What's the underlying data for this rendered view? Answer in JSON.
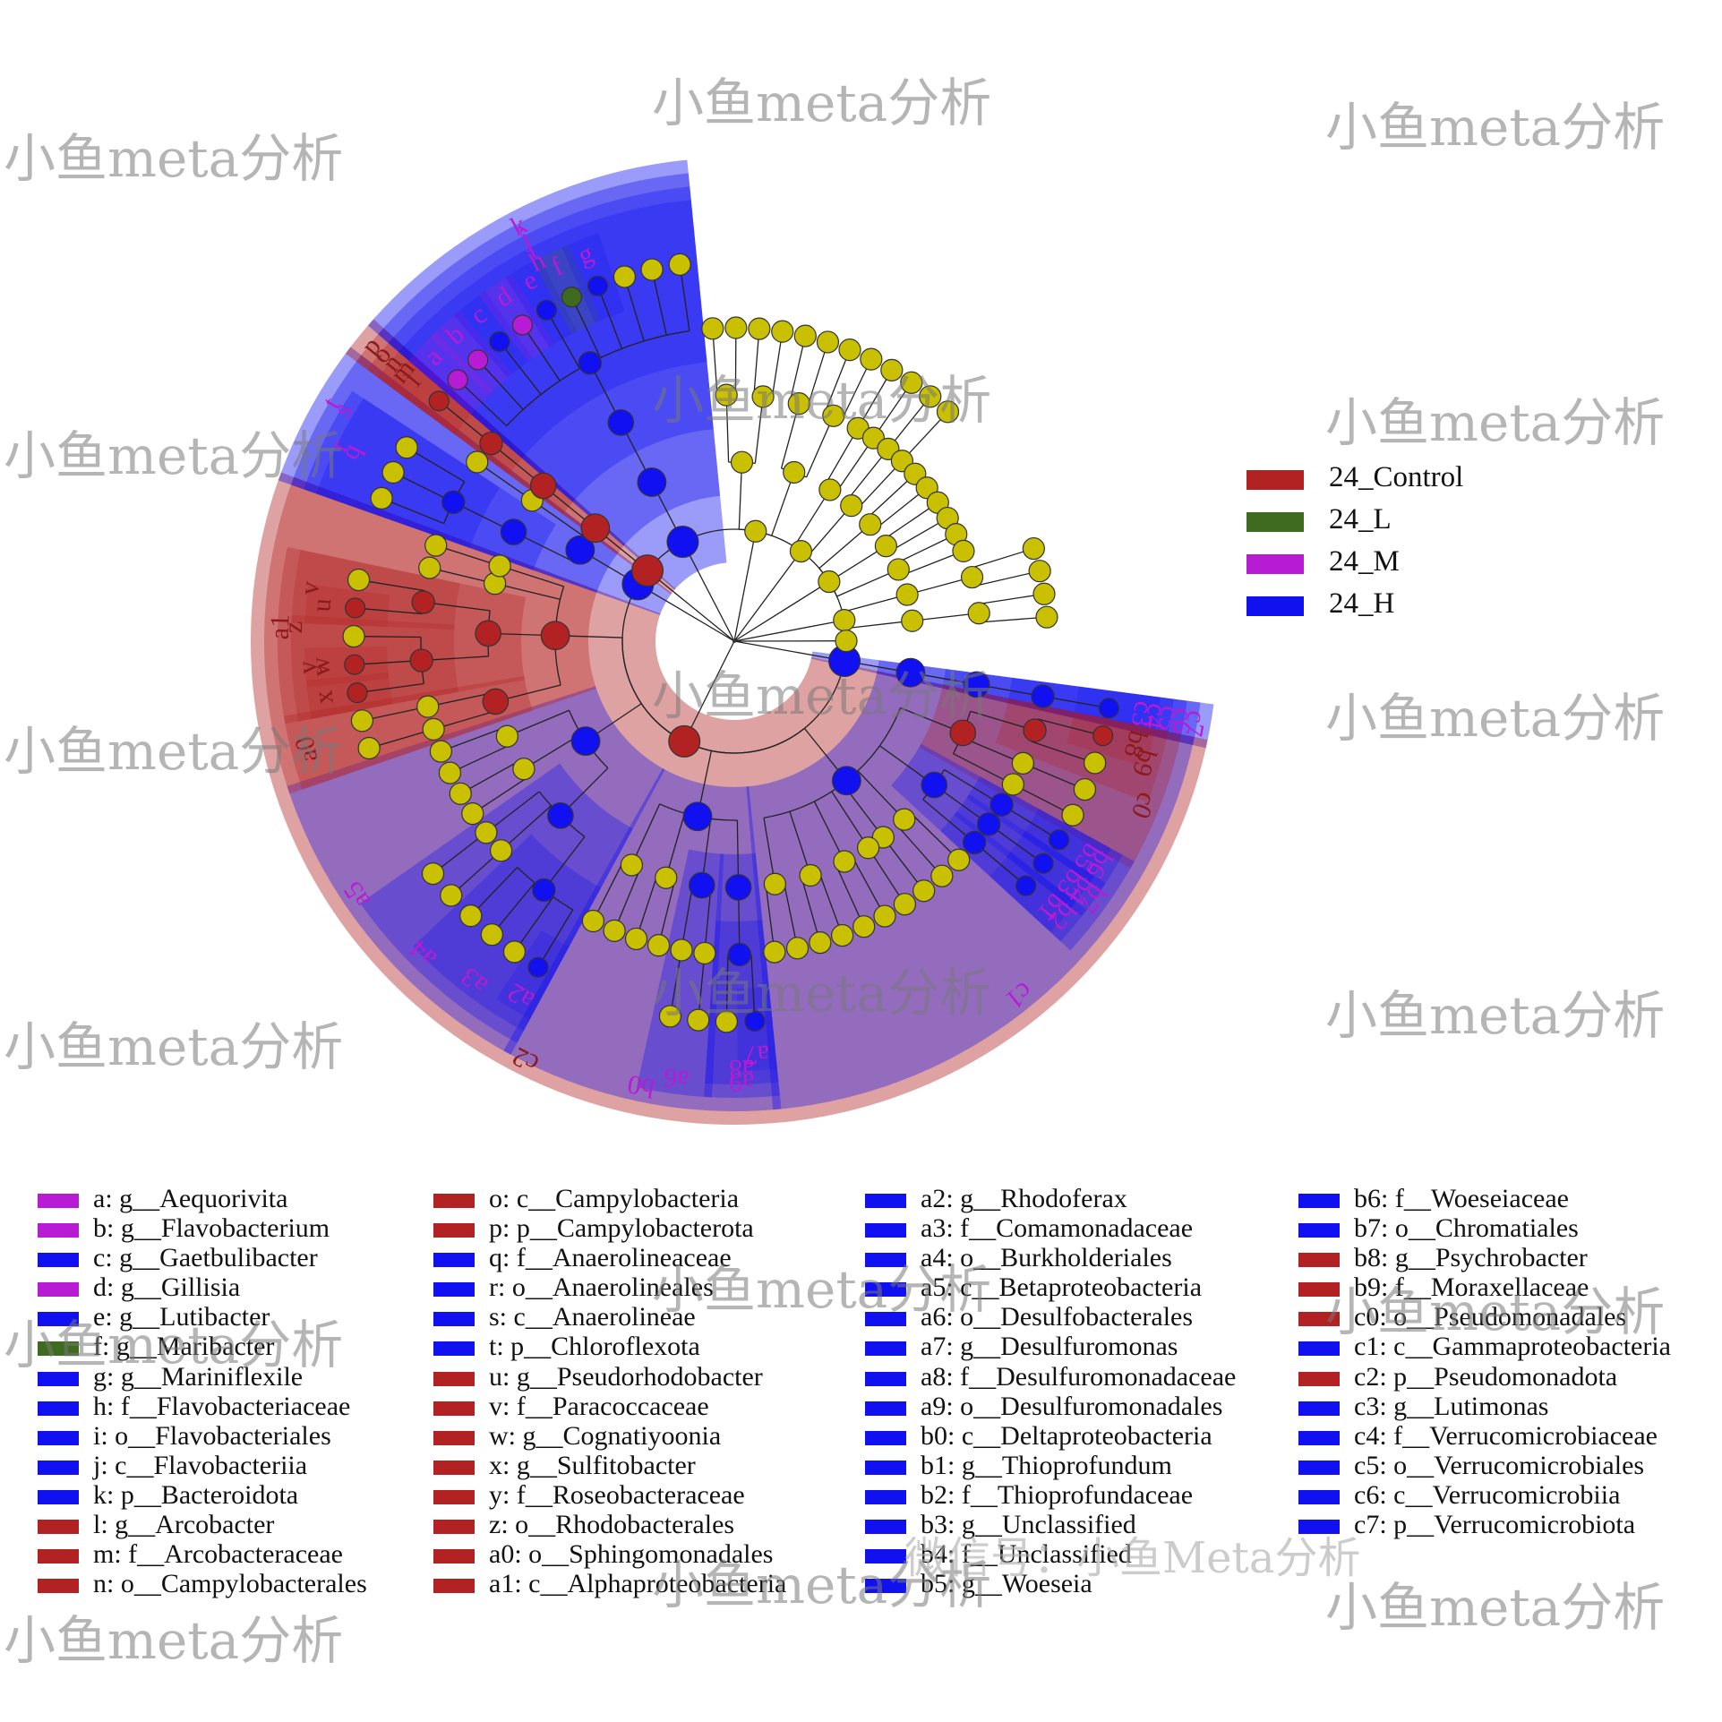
{
  "chart_data": {
    "type": "cladogram",
    "groups": [
      {
        "name": "24_Control",
        "color": "#b22222"
      },
      {
        "name": "24_L",
        "color": "#3e6b1f"
      },
      {
        "name": "24_M",
        "color": "#b81bd4"
      },
      {
        "name": "24_H",
        "color": "#1010f0"
      }
    ],
    "taxa": [
      {
        "code": "a",
        "name": "g__Aequorivita",
        "group": "24_M"
      },
      {
        "code": "b",
        "name": "g__Flavobacterium",
        "group": "24_M"
      },
      {
        "code": "c",
        "name": "g__Gaetbulibacter",
        "group": "24_H"
      },
      {
        "code": "d",
        "name": "g__Gillisia",
        "group": "24_M"
      },
      {
        "code": "e",
        "name": "g__Lutibacter",
        "group": "24_H"
      },
      {
        "code": "f",
        "name": "g__Maribacter",
        "group": "24_L"
      },
      {
        "code": "g",
        "name": "g__Mariniflexile",
        "group": "24_H"
      },
      {
        "code": "h",
        "name": "f__Flavobacteriaceae",
        "group": "24_H"
      },
      {
        "code": "i",
        "name": "o__Flavobacteriales",
        "group": "24_H"
      },
      {
        "code": "j",
        "name": "c__Flavobacteriia",
        "group": "24_H"
      },
      {
        "code": "k",
        "name": "p__Bacteroidota",
        "group": "24_H"
      },
      {
        "code": "l",
        "name": "g__Arcobacter",
        "group": "24_Control"
      },
      {
        "code": "m",
        "name": "f__Arcobacteraceae",
        "group": "24_Control"
      },
      {
        "code": "n",
        "name": "o__Campylobacterales",
        "group": "24_Control"
      },
      {
        "code": "o",
        "name": "c__Campylobacteria",
        "group": "24_Control"
      },
      {
        "code": "p",
        "name": "p__Campylobacterota",
        "group": "24_Control"
      },
      {
        "code": "q",
        "name": "f__Anaerolineaceae",
        "group": "24_H"
      },
      {
        "code": "r",
        "name": "o__Anaerolineales",
        "group": "24_H"
      },
      {
        "code": "s",
        "name": "c__Anaerolineae",
        "group": "24_H"
      },
      {
        "code": "t",
        "name": "p__Chloroflexota",
        "group": "24_H"
      },
      {
        "code": "u",
        "name": "g__Pseudorhodobacter",
        "group": "24_Control"
      },
      {
        "code": "v",
        "name": "f__Paracoccaceae",
        "group": "24_Control"
      },
      {
        "code": "w",
        "name": "g__Cognatiyoonia",
        "group": "24_Control"
      },
      {
        "code": "x",
        "name": "g__Sulfitobacter",
        "group": "24_Control"
      },
      {
        "code": "y",
        "name": "f__Roseobacteraceae",
        "group": "24_Control"
      },
      {
        "code": "z",
        "name": "o__Rhodobacterales",
        "group": "24_Control"
      },
      {
        "code": "a0",
        "name": "o__Sphingomonadales",
        "group": "24_Control"
      },
      {
        "code": "a1",
        "name": "c__Alphaproteobacteria",
        "group": "24_Control"
      },
      {
        "code": "a2",
        "name": "g__Rhodoferax",
        "group": "24_H"
      },
      {
        "code": "a3",
        "name": "f__Comamonadaceae",
        "group": "24_H"
      },
      {
        "code": "a4",
        "name": "o__Burkholderiales",
        "group": "24_H"
      },
      {
        "code": "a5",
        "name": "c__Betaproteobacteria",
        "group": "24_H"
      },
      {
        "code": "a6",
        "name": "o__Desulfobacterales",
        "group": "24_H"
      },
      {
        "code": "a7",
        "name": "g__Desulfuromonas",
        "group": "24_H"
      },
      {
        "code": "a8",
        "name": "f__Desulfuromonadaceae",
        "group": "24_H"
      },
      {
        "code": "a9",
        "name": "o__Desulfuromonadales",
        "group": "24_H"
      },
      {
        "code": "b0",
        "name": "c__Deltaproteobacteria",
        "group": "24_H"
      },
      {
        "code": "b1",
        "name": "g__Thioprofundum",
        "group": "24_H"
      },
      {
        "code": "b2",
        "name": "f__Thioprofundaceae",
        "group": "24_H"
      },
      {
        "code": "b3",
        "name": "g__Unclassified",
        "group": "24_H"
      },
      {
        "code": "b4",
        "name": "f__Unclassified",
        "group": "24_H"
      },
      {
        "code": "b5",
        "name": "g__Woeseia",
        "group": "24_H"
      },
      {
        "code": "b6",
        "name": "f__Woeseiaceae",
        "group": "24_H"
      },
      {
        "code": "b7",
        "name": "o__Chromatiales",
        "group": "24_H"
      },
      {
        "code": "b8",
        "name": "g__Psychrobacter",
        "group": "24_Control"
      },
      {
        "code": "b9",
        "name": "f__Moraxellaceae",
        "group": "24_Control"
      },
      {
        "code": "c0",
        "name": "o__Pseudomonadales",
        "group": "24_Control"
      },
      {
        "code": "c1",
        "name": "c__Gammaproteobacteria",
        "group": "24_H"
      },
      {
        "code": "c2",
        "name": "p__Pseudomonadota",
        "group": "24_Control"
      },
      {
        "code": "c3",
        "name": "g__Lutimonas",
        "group": "24_H"
      },
      {
        "code": "c4",
        "name": "f__Verrucomicrobiaceae",
        "group": "24_H"
      },
      {
        "code": "c5",
        "name": "o__Verrucomicrobiales",
        "group": "24_H"
      },
      {
        "code": "c6",
        "name": "c__Verrucomicrobiia",
        "group": "24_H"
      },
      {
        "code": "c7",
        "name": "p__Verrucomicrobiota",
        "group": "24_H"
      }
    ]
  },
  "watermark": {
    "text": "小鱼meta分析",
    "footer_text": "微信号：小鱼Meta分析"
  }
}
